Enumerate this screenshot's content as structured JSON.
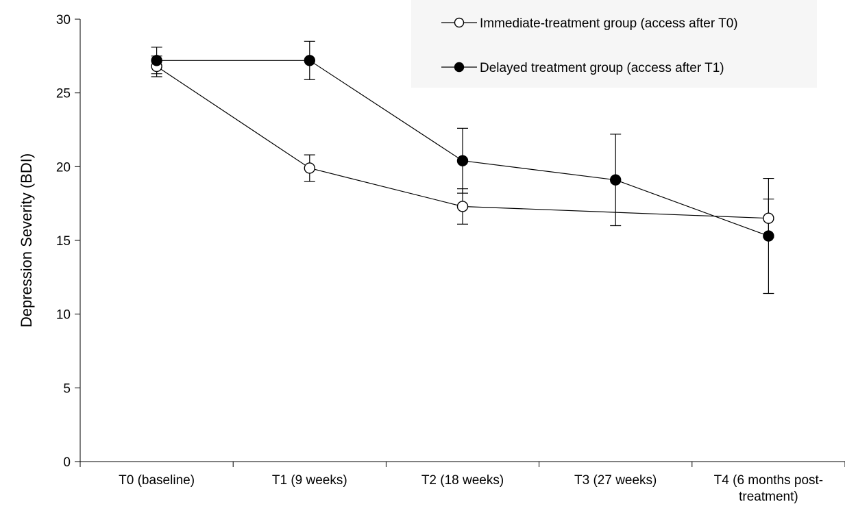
{
  "chart_data": {
    "type": "line",
    "title": "",
    "xlabel": "",
    "ylabel": "Depression Severity (BDI)",
    "ylim": [
      0,
      30
    ],
    "yticks": [
      0,
      5,
      10,
      15,
      20,
      25,
      30
    ],
    "grid": false,
    "legend_position": "top-right",
    "categories": [
      [
        "T0 (baseline)"
      ],
      [
        "T1 (9 weeks)"
      ],
      [
        "T2 (18 weeks)"
      ],
      [
        "T3 (27 weeks)"
      ],
      [
        "T4 (6 months post-",
        "treatment)"
      ]
    ],
    "series": [
      {
        "name": "Immediate-treatment group (access after T0)",
        "marker": "open-circle",
        "values": [
          26.8,
          19.9,
          17.3,
          null,
          16.5
        ],
        "error": [
          0.7,
          0.9,
          1.2,
          null,
          1.3
        ]
      },
      {
        "name": "Delayed treatment group (access after T1)",
        "marker": "filled-circle",
        "values": [
          27.2,
          27.2,
          20.4,
          19.1,
          15.3
        ],
        "error": [
          0.9,
          1.3,
          2.2,
          3.1,
          3.9
        ]
      }
    ],
    "colors": {
      "line": "#000000",
      "open_marker_fill": "#ffffff",
      "filled_marker_fill": "#000000"
    }
  }
}
